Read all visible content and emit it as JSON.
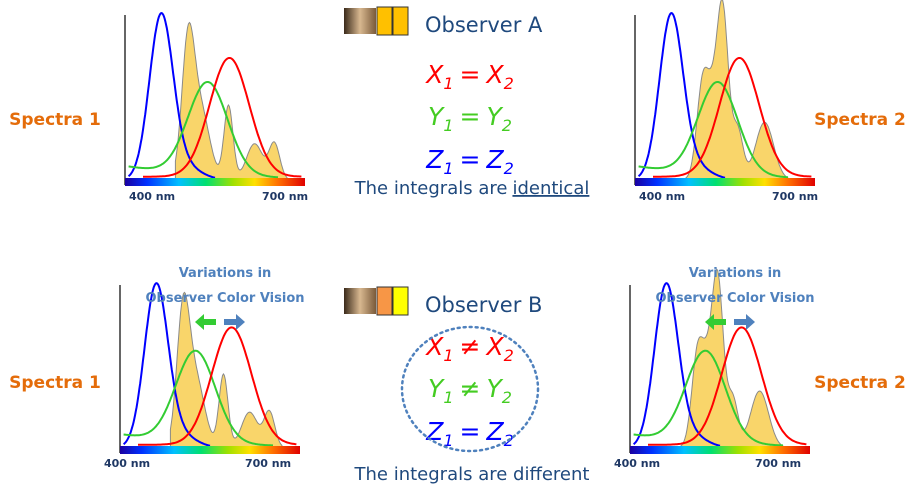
{
  "panels": [
    {
      "label": "Spectra 1",
      "axis_start": "400 nm",
      "axis_end": "700 nm"
    },
    {
      "label": "Spectra 2",
      "axis_start": "400 nm",
      "axis_end": "700 nm"
    },
    {
      "label": "Spectra 1",
      "axis_start": "400 nm",
      "axis_end": "700 nm",
      "caption": [
        "Variations in",
        "Observer Color Vision"
      ]
    },
    {
      "label": "Spectra 2",
      "axis_start": "400 nm",
      "axis_end": "700 nm",
      "caption": [
        "Variations in",
        "Observer Color Vision"
      ]
    }
  ],
  "observers": [
    {
      "name": "Observer A",
      "equations": [
        {
          "left": "X",
          "left_sub": "1",
          "op": "=",
          "right": "X",
          "right_sub": "2"
        },
        {
          "left": "Y",
          "left_sub": "1",
          "op": "=",
          "right": "Y",
          "right_sub": "2"
        },
        {
          "left": "Z",
          "left_sub": "1",
          "op": "=",
          "right": "Z",
          "right_sub": "2"
        }
      ],
      "summary": "The integrals are",
      "summary_emphasis": "identical"
    },
    {
      "name": "Observer B",
      "equations": [
        {
          "left": "X",
          "left_sub": "1",
          "op": "≠",
          "right": "X",
          "right_sub": "2"
        },
        {
          "left": "Y",
          "left_sub": "1",
          "op": "≠",
          "right": "Y",
          "right_sub": "2"
        },
        {
          "left": "Z",
          "left_sub": "1",
          "op": "=",
          "right": "Z",
          "right_sub": "2"
        }
      ],
      "summary": "The integrals are different"
    }
  ]
}
